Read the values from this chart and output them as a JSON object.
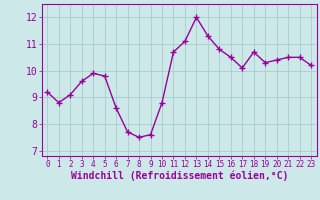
{
  "x": [
    0,
    1,
    2,
    3,
    4,
    5,
    6,
    7,
    8,
    9,
    10,
    11,
    12,
    13,
    14,
    15,
    16,
    17,
    18,
    19,
    20,
    21,
    22,
    23
  ],
  "y": [
    9.2,
    8.8,
    9.1,
    9.6,
    9.9,
    9.8,
    8.6,
    7.7,
    7.5,
    7.6,
    8.8,
    10.7,
    11.1,
    12.0,
    11.3,
    10.8,
    10.5,
    10.1,
    10.7,
    10.3,
    10.4,
    10.5,
    10.5,
    10.2
  ],
  "line_color": "#990099",
  "marker": "+",
  "bg_color": "#cce8e8",
  "grid_color": "#aacccc",
  "xlabel": "Windchill (Refroidissement éolien,°C)",
  "ylim": [
    6.8,
    12.5
  ],
  "xlim": [
    -0.5,
    23.5
  ],
  "yticks": [
    7,
    8,
    9,
    10,
    11,
    12
  ],
  "xticks": [
    0,
    1,
    2,
    3,
    4,
    5,
    6,
    7,
    8,
    9,
    10,
    11,
    12,
    13,
    14,
    15,
    16,
    17,
    18,
    19,
    20,
    21,
    22,
    23
  ],
  "font_color": "#990099",
  "linewidth": 1.0,
  "markersize": 4,
  "tick_fontsize": 7,
  "xlabel_fontsize": 7
}
